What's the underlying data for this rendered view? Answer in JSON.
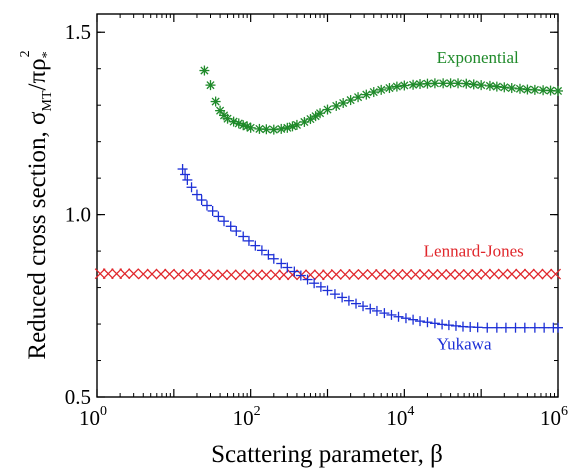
{
  "chart_data": {
    "type": "scatter",
    "xscale": "log",
    "xlim": [
      1,
      1000000
    ],
    "ylim": [
      0.5,
      1.55
    ],
    "xlabel": "Scattering parameter, β",
    "ylabel": {
      "prefix": "Reduced cross section, σ",
      "sub": "MT",
      "mid": "/πρ",
      "sub2": "*",
      "sup": "2"
    },
    "x_ticks": [
      {
        "base": "10",
        "exp": "0",
        "value": 1
      },
      {
        "base": "10",
        "exp": "2",
        "value": 100
      },
      {
        "base": "10",
        "exp": "4",
        "value": 10000
      },
      {
        "base": "10",
        "exp": "6",
        "value": 1000000
      }
    ],
    "y_ticks": [
      {
        "label": "0.5",
        "value": 0.5
      },
      {
        "label": "1.0",
        "value": 1.0
      },
      {
        "label": "1.5",
        "value": 1.5
      }
    ],
    "grid": false,
    "series": [
      {
        "name": "Exponential",
        "color": "#1f8a2a",
        "marker": "asterisk",
        "points": [
          [
            25,
            1.395
          ],
          [
            30,
            1.355
          ],
          [
            35,
            1.31
          ],
          [
            40,
            1.285
          ],
          [
            45,
            1.272
          ],
          [
            50,
            1.263
          ],
          [
            60,
            1.255
          ],
          [
            70,
            1.25
          ],
          [
            80,
            1.245
          ],
          [
            90,
            1.242
          ],
          [
            100,
            1.238
          ],
          [
            130,
            1.235
          ],
          [
            160,
            1.234
          ],
          [
            200,
            1.233
          ],
          [
            250,
            1.235
          ],
          [
            300,
            1.238
          ],
          [
            350,
            1.242
          ],
          [
            400,
            1.246
          ],
          [
            500,
            1.254
          ],
          [
            600,
            1.262
          ],
          [
            700,
            1.27
          ],
          [
            800,
            1.278
          ],
          [
            1000,
            1.288
          ],
          [
            1300,
            1.298
          ],
          [
            1600,
            1.306
          ],
          [
            2000,
            1.314
          ],
          [
            2500,
            1.322
          ],
          [
            3200,
            1.329
          ],
          [
            4000,
            1.336
          ],
          [
            5000,
            1.342
          ],
          [
            6400,
            1.347
          ],
          [
            8000,
            1.351
          ],
          [
            10000,
            1.354
          ],
          [
            13000,
            1.356
          ],
          [
            16000,
            1.358
          ],
          [
            20000,
            1.359
          ],
          [
            25000,
            1.36
          ],
          [
            32000,
            1.36
          ],
          [
            40000,
            1.36
          ],
          [
            50000,
            1.36
          ],
          [
            64000,
            1.359
          ],
          [
            80000,
            1.357
          ],
          [
            100000,
            1.355
          ],
          [
            130000,
            1.353
          ],
          [
            160000,
            1.351
          ],
          [
            200000,
            1.349
          ],
          [
            250000,
            1.347
          ],
          [
            320000,
            1.345
          ],
          [
            400000,
            1.343
          ],
          [
            500000,
            1.342
          ],
          [
            640000,
            1.341
          ],
          [
            800000,
            1.34
          ],
          [
            1000000,
            1.339
          ]
        ]
      },
      {
        "name": "Lennard-Jones",
        "color": "#e0262b",
        "marker": "x",
        "points": [
          [
            1.1,
            0.838
          ],
          [
            1.4,
            0.838
          ],
          [
            1.8,
            0.838
          ],
          [
            2.3,
            0.838
          ],
          [
            3.0,
            0.838
          ],
          [
            4.0,
            0.837
          ],
          [
            5.2,
            0.837
          ],
          [
            6.8,
            0.837
          ],
          [
            8.8,
            0.837
          ],
          [
            11.5,
            0.836
          ],
          [
            15,
            0.836
          ],
          [
            19.5,
            0.836
          ],
          [
            25,
            0.836
          ],
          [
            33,
            0.835
          ],
          [
            43,
            0.835
          ],
          [
            56,
            0.835
          ],
          [
            73,
            0.835
          ],
          [
            95,
            0.835
          ],
          [
            123,
            0.835
          ],
          [
            160,
            0.835
          ],
          [
            210,
            0.835
          ],
          [
            270,
            0.835
          ],
          [
            350,
            0.835
          ],
          [
            460,
            0.835
          ],
          [
            600,
            0.835
          ],
          [
            780,
            0.835
          ],
          [
            1000,
            0.835
          ],
          [
            1300,
            0.836
          ],
          [
            1700,
            0.836
          ],
          [
            2200,
            0.836
          ],
          [
            2900,
            0.836
          ],
          [
            3800,
            0.836
          ],
          [
            4900,
            0.836
          ],
          [
            6400,
            0.836
          ],
          [
            8300,
            0.836
          ],
          [
            10800,
            0.836
          ],
          [
            14000,
            0.836
          ],
          [
            18200,
            0.836
          ],
          [
            23700,
            0.836
          ],
          [
            30800,
            0.836
          ],
          [
            40000,
            0.836
          ],
          [
            52000,
            0.836
          ],
          [
            67600,
            0.836
          ],
          [
            88000,
            0.836
          ],
          [
            114000,
            0.837
          ],
          [
            148000,
            0.837
          ],
          [
            193000,
            0.837
          ],
          [
            251000,
            0.837
          ],
          [
            326000,
            0.837
          ],
          [
            424000,
            0.837
          ],
          [
            551000,
            0.837
          ],
          [
            716000,
            0.837
          ],
          [
            930000,
            0.837
          ]
        ]
      },
      {
        "name": "Yukawa",
        "color": "#1c2fd6",
        "marker": "plus",
        "points": [
          [
            13,
            1.125
          ],
          [
            14,
            1.11
          ],
          [
            15,
            1.095
          ],
          [
            17,
            1.075
          ],
          [
            20,
            1.055
          ],
          [
            23,
            1.04
          ],
          [
            27,
            1.025
          ],
          [
            32,
            1.01
          ],
          [
            38,
            0.995
          ],
          [
            45,
            0.982
          ],
          [
            55,
            0.968
          ],
          [
            65,
            0.955
          ],
          [
            80,
            0.94
          ],
          [
            95,
            0.928
          ],
          [
            115,
            0.915
          ],
          [
            140,
            0.902
          ],
          [
            170,
            0.89
          ],
          [
            200,
            0.879
          ],
          [
            250,
            0.866
          ],
          [
            300,
            0.855
          ],
          [
            370,
            0.844
          ],
          [
            450,
            0.833
          ],
          [
            550,
            0.822
          ],
          [
            670,
            0.812
          ],
          [
            820,
            0.802
          ],
          [
            1000,
            0.792
          ],
          [
            1250,
            0.782
          ],
          [
            1550,
            0.773
          ],
          [
            1900,
            0.764
          ],
          [
            2350,
            0.756
          ],
          [
            2900,
            0.749
          ],
          [
            3600,
            0.742
          ],
          [
            4400,
            0.736
          ],
          [
            5500,
            0.73
          ],
          [
            6800,
            0.725
          ],
          [
            8400,
            0.72
          ],
          [
            10500,
            0.716
          ],
          [
            13000,
            0.712
          ],
          [
            16000,
            0.708
          ],
          [
            20000,
            0.705
          ],
          [
            25000,
            0.702
          ],
          [
            31000,
            0.699
          ],
          [
            38000,
            0.697
          ],
          [
            47000,
            0.695
          ],
          [
            58000,
            0.693
          ],
          [
            72000,
            0.692
          ],
          [
            90000,
            0.691
          ],
          [
            120000,
            0.69
          ],
          [
            160000,
            0.69
          ],
          [
            210000,
            0.69
          ],
          [
            280000,
            0.69
          ],
          [
            370000,
            0.69
          ],
          [
            500000,
            0.69
          ],
          [
            660000,
            0.69
          ],
          [
            870000,
            0.69
          ],
          [
            1000000,
            0.69
          ]
        ]
      }
    ],
    "annotations": [
      {
        "text": "Exponential",
        "series": 0,
        "x": 90000,
        "y": 1.415
      },
      {
        "text": "Lennard-Jones",
        "series": 1,
        "x": 80000,
        "y": 0.885
      },
      {
        "text": "Yukawa",
        "series": 2,
        "x": 60000,
        "y": 0.63
      }
    ]
  }
}
